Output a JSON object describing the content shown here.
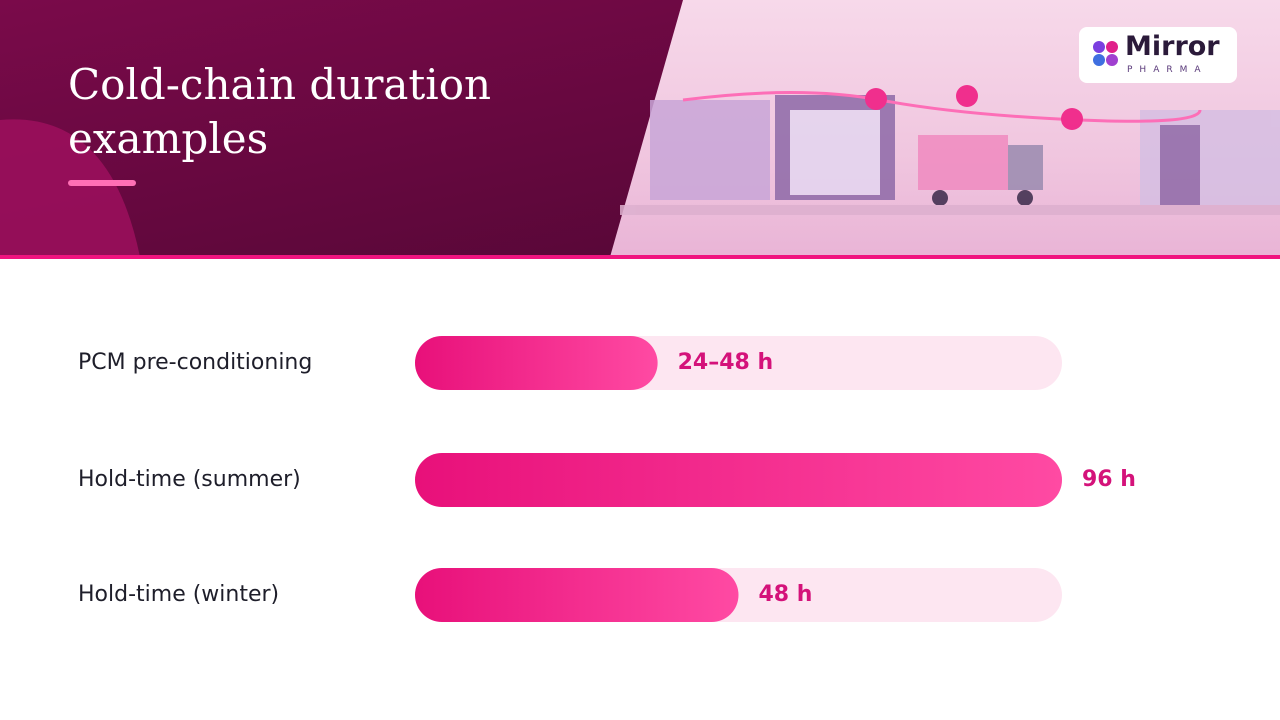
{
  "header": {
    "title": "Cold-chain duration examples"
  },
  "logo": {
    "name": "Mirror",
    "tagline": "PHARMA"
  },
  "chart_data": {
    "type": "bar",
    "orientation": "horizontal",
    "categories": [
      "PCM pre-conditioning",
      "Hold-time (summer)",
      "Hold-time (winter)"
    ],
    "values": [
      [
        24,
        48
      ],
      96,
      48
    ],
    "value_labels": [
      "24–48 h",
      "96 h",
      "48 h"
    ],
    "xlim": [
      0,
      96
    ],
    "color": "#f0147f",
    "track_color": "#fde6f1",
    "label_color": "#d4127a"
  }
}
